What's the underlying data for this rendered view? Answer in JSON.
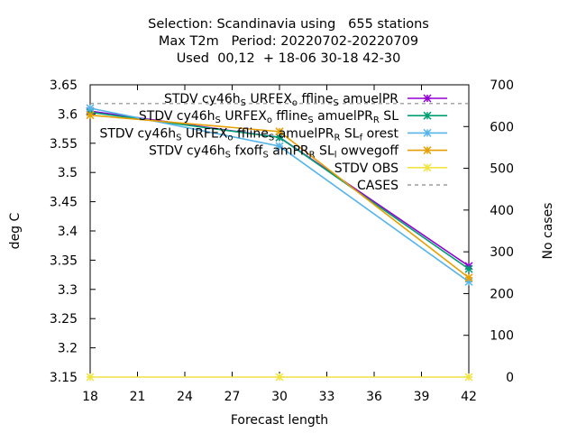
{
  "title_lines": [
    "Selection: Scandinavia using   655 stations",
    "Max T2m   Period: 20220702-20220709",
    "Used  00,12  + 18-06 30-18 42-30"
  ],
  "chart_data": {
    "type": "line",
    "xlabel": "Forecast length",
    "ylabel": "deg C",
    "y2label": "No cases",
    "x": [
      18,
      30,
      42
    ],
    "xlim": [
      18,
      42
    ],
    "ylim": [
      3.15,
      3.65
    ],
    "y2lim": [
      0,
      700
    ],
    "xticks": [
      "18",
      "21",
      "24",
      "27",
      "30",
      "33",
      "36",
      "39",
      "42"
    ],
    "yticks": [
      "3.15",
      "3.2",
      "3.25",
      "3.3",
      "3.35",
      "3.4",
      "3.45",
      "3.5",
      "3.55",
      "3.6",
      "3.65"
    ],
    "y2ticks": [
      "0",
      "100",
      "200",
      "300",
      "400",
      "500",
      "600",
      "700"
    ],
    "grid": false,
    "legend_position": "top-right",
    "series": [
      {
        "name": "STDV cy46h_S URFEX_o ffline_S amuelPR",
        "legend_parts": [
          [
            "STDV cy46h",
            ""
          ],
          [
            "S",
            "sub"
          ],
          [
            " URFEX",
            ""
          ],
          [
            "o",
            "sub"
          ],
          [
            " ffline",
            ""
          ],
          [
            "S",
            "sub"
          ],
          [
            " amuelPR",
            ""
          ]
        ],
        "axis": "y",
        "color": "#9400d3",
        "marker": "x*",
        "values": [
          3.605,
          3.56,
          3.34
        ]
      },
      {
        "name": "STDV cy46h_S URFEX_o ffline_S amuelPR_R SL",
        "legend_parts": [
          [
            "STDV cy46h",
            ""
          ],
          [
            "S",
            "sub"
          ],
          [
            " URFEX",
            ""
          ],
          [
            "o",
            "sub"
          ],
          [
            " ffline",
            ""
          ],
          [
            "S",
            "sub"
          ],
          [
            " amuelPR",
            ""
          ],
          [
            "R",
            "sub"
          ],
          [
            " SL",
            ""
          ]
        ],
        "axis": "y",
        "color": "#009e73",
        "marker": "x*",
        "values": [
          3.603,
          3.56,
          3.335
        ]
      },
      {
        "name": "STDV cy46h_S URFEX_o ffline_S amuelPR_R SL_f orest",
        "legend_parts": [
          [
            "STDV cy46h",
            ""
          ],
          [
            "S",
            "sub"
          ],
          [
            " URFEX",
            ""
          ],
          [
            "o",
            "sub"
          ],
          [
            " ffline",
            ""
          ],
          [
            "S",
            "sub"
          ],
          [
            " amuelPR",
            ""
          ],
          [
            "R",
            "sub"
          ],
          [
            " SL",
            ""
          ],
          [
            "f",
            "sub"
          ],
          [
            " orest",
            ""
          ]
        ],
        "axis": "y",
        "color": "#56b4e9",
        "marker": "x*",
        "values": [
          3.61,
          3.545,
          3.313
        ]
      },
      {
        "name": "STDV cy46h_S fxoff_S amPR_R SL_l owvegoff",
        "legend_parts": [
          [
            "STDV cy46h",
            ""
          ],
          [
            "S",
            "sub"
          ],
          [
            " fxoff",
            ""
          ],
          [
            "S",
            "sub"
          ],
          [
            " amPR",
            ""
          ],
          [
            "R",
            "sub"
          ],
          [
            " SL",
            ""
          ],
          [
            "l",
            "sub"
          ],
          [
            " owvegoff",
            ""
          ]
        ],
        "axis": "y",
        "color": "#e69f00",
        "marker": "x*",
        "values": [
          3.598,
          3.57,
          3.32
        ]
      },
      {
        "name": "STDV OBS",
        "legend_parts": [
          [
            "STDV OBS",
            ""
          ]
        ],
        "axis": "y",
        "color": "#f0e442",
        "marker": "x*",
        "values": [
          3.15,
          3.15,
          3.15
        ]
      },
      {
        "name": "CASES",
        "legend_parts": [
          [
            "CASES",
            ""
          ]
        ],
        "axis": "y2",
        "color": "#888888",
        "marker": "none",
        "dashed": true,
        "values": [
          655,
          655,
          655
        ]
      }
    ]
  }
}
